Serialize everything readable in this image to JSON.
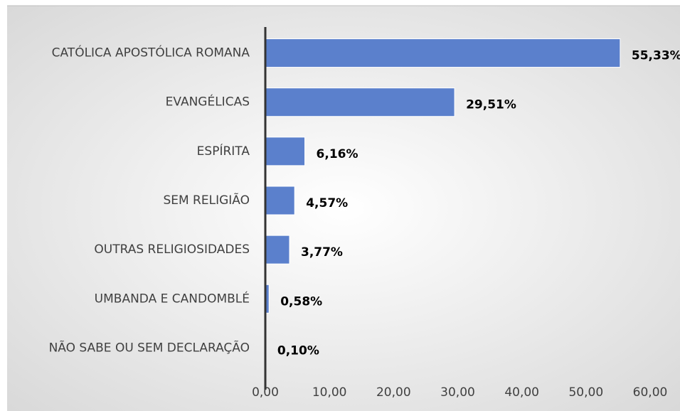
{
  "chart_data": {
    "type": "bar",
    "orientation": "horizontal",
    "categories": [
      "CATÓLICA APOSTÓLICA ROMANA",
      "EVANGÉLICAS",
      "ESPÍRITA",
      "SEM RELIGIÃO",
      "OUTRAS RELIGIOSIDADES",
      "UMBANDA E CANDOMBLÉ",
      "NÃO SABE OU SEM DECLARAÇÃO"
    ],
    "values": [
      55.33,
      29.51,
      6.16,
      4.57,
      3.77,
      0.58,
      0.1
    ],
    "value_labels": [
      "55,33%",
      "29,51%",
      "6,16%",
      "4,57%",
      "3,77%",
      "0,58%",
      "0,10%"
    ],
    "color": "#5b80cc",
    "xlim": [
      0,
      60
    ],
    "xticks": [
      {
        "value": 0,
        "label": "0,00"
      },
      {
        "value": 10,
        "label": "10,00"
      },
      {
        "value": 20,
        "label": "20,00"
      },
      {
        "value": 30,
        "label": "30,00"
      },
      {
        "value": 40,
        "label": "40,00"
      },
      {
        "value": 50,
        "label": "50,00"
      },
      {
        "value": 60,
        "label": "60,00"
      }
    ],
    "grid": false
  }
}
